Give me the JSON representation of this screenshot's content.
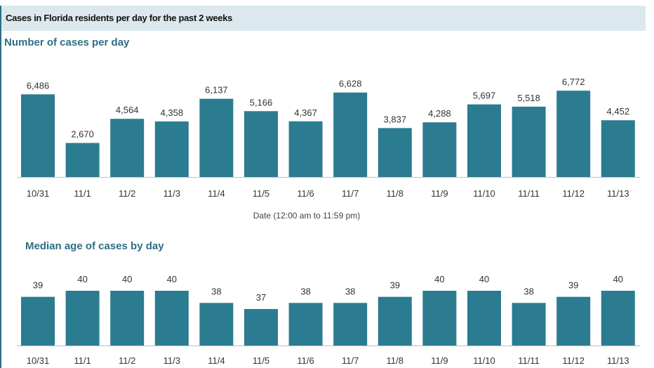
{
  "header": {
    "title": "Cases in Florida residents per day for the past 2 weeks"
  },
  "colors": {
    "bar": "#2b7c90",
    "header_bg": "#dbe9ee",
    "accent": "#2e6f84"
  },
  "chart_data": [
    {
      "type": "bar",
      "title": "Number of cases per day",
      "xlabel": "Date (12:00 am to 11:59 pm)",
      "ylabel": "",
      "categories": [
        "10/31",
        "11/1",
        "11/2",
        "11/3",
        "11/4",
        "11/5",
        "11/6",
        "11/7",
        "11/8",
        "11/9",
        "11/10",
        "11/11",
        "11/12",
        "11/13"
      ],
      "values": [
        6486,
        2670,
        4564,
        4358,
        6137,
        5166,
        4367,
        6628,
        3837,
        4288,
        5697,
        5518,
        6772,
        4452
      ],
      "value_labels": [
        "6,486",
        "2,670",
        "4,564",
        "4,358",
        "6,137",
        "5,166",
        "4,367",
        "6,628",
        "3,837",
        "4,288",
        "5,697",
        "5,518",
        "6,772",
        "4,452"
      ],
      "ylim": [
        0,
        7000
      ],
      "grid": false,
      "legend": "none"
    },
    {
      "type": "bar",
      "title": "Median age of cases by day",
      "xlabel": "",
      "ylabel": "",
      "categories": [
        "10/31",
        "11/1",
        "11/2",
        "11/3",
        "11/4",
        "11/5",
        "11/6",
        "11/7",
        "11/8",
        "11/9",
        "11/10",
        "11/11",
        "11/12",
        "11/13"
      ],
      "values": [
        39,
        40,
        40,
        40,
        38,
        37,
        38,
        38,
        39,
        40,
        40,
        38,
        39,
        40
      ],
      "value_labels": [
        "39",
        "40",
        "40",
        "40",
        "38",
        "37",
        "38",
        "38",
        "39",
        "40",
        "40",
        "38",
        "39",
        "40"
      ],
      "ylim": [
        0,
        40
      ],
      "grid": false,
      "legend": "none"
    }
  ]
}
